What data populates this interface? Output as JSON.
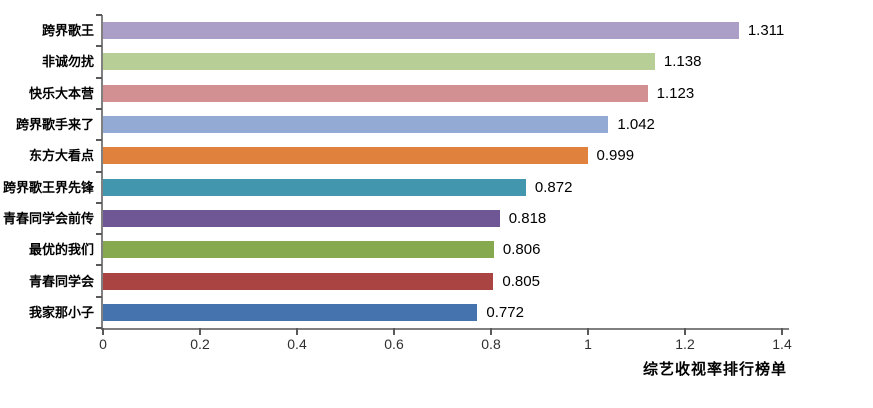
{
  "chart_data": {
    "type": "bar",
    "orientation": "horizontal",
    "title": "综艺收视率排行榜单",
    "categories": [
      "跨界歌王",
      "非诚勿扰",
      "快乐大本营",
      "跨界歌手来了",
      "东方大看点",
      "跨界歌王界先锋",
      "青春同学会前传",
      "最优的我们",
      "青春同学会",
      "我家那小子"
    ],
    "values": [
      1.311,
      1.138,
      1.123,
      1.042,
      0.999,
      0.872,
      0.818,
      0.806,
      0.805,
      0.772
    ],
    "value_labels": [
      "1.311",
      "1.138",
      "1.123",
      "1.042",
      "0.999",
      "0.872",
      "0.818",
      "0.806",
      "0.805",
      "0.772"
    ],
    "bar_colors": [
      "#AC9FC7",
      "#B8CE97",
      "#D29093",
      "#93AAD5",
      "#E0823E",
      "#4297AE",
      "#6F5695",
      "#86A84F",
      "#A94443",
      "#4473AD"
    ],
    "xlim": [
      0,
      1.4
    ],
    "x_ticks": [
      0,
      0.2,
      0.4,
      0.6,
      0.8,
      1,
      1.2,
      1.4
    ],
    "x_tick_labels": [
      "0",
      "0.2",
      "0.4",
      "0.6",
      "0.8",
      "1",
      "1.2",
      "1.4"
    ],
    "grid": false,
    "legend": "none",
    "axis_color": "#808080",
    "tick_color": "#595959",
    "title_position": "bottom-right"
  }
}
